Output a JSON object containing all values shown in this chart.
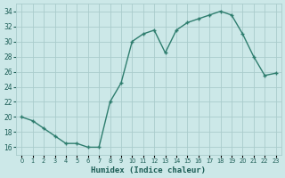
{
  "x": [
    0,
    1,
    2,
    3,
    4,
    5,
    6,
    7,
    8,
    9,
    10,
    11,
    12,
    13,
    14,
    15,
    16,
    17,
    18,
    19,
    20,
    21,
    22,
    23
  ],
  "y": [
    20,
    19.5,
    18.5,
    17.5,
    16.5,
    16.5,
    16.0,
    16.0,
    22.0,
    24.5,
    30.0,
    31.0,
    31.5,
    28.5,
    31.5,
    32.5,
    33.0,
    33.5,
    34.0,
    33.5,
    31.0,
    28.0,
    25.5,
    25.8
  ],
  "xlabel": "Humidex (Indice chaleur)",
  "ylim": [
    15,
    35
  ],
  "xlim": [
    -0.5,
    23.5
  ],
  "yticks": [
    16,
    18,
    20,
    22,
    24,
    26,
    28,
    30,
    32,
    34
  ],
  "xtick_labels": [
    "0",
    "1",
    "2",
    "3",
    "4",
    "5",
    "6",
    "7",
    "8",
    "9",
    "10",
    "11",
    "12",
    "13",
    "14",
    "15",
    "16",
    "17",
    "18",
    "19",
    "20",
    "21",
    "22",
    "23"
  ],
  "line_color": "#2e7d6e",
  "marker": "+",
  "bg_color": "#cce8e8",
  "grid_color": "#aacccc",
  "label_color": "#1a5c54",
  "tick_color": "#1a5c54"
}
